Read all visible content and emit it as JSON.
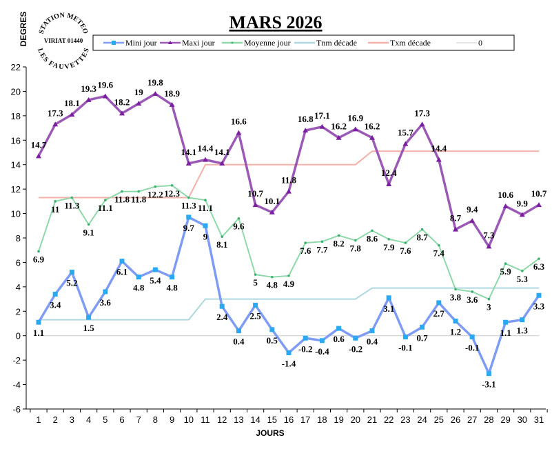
{
  "chart_data": {
    "type": "line",
    "title": "MARS 2026",
    "xlabel": "JOURS",
    "ylabel": "DEGRES",
    "logo_text": [
      "STATION METEO",
      "VIRIAT 01440",
      "LES FAUVETTES"
    ],
    "ylim": [
      -6,
      22
    ],
    "yticks": [
      -6,
      -4,
      -2,
      0,
      2,
      4,
      6,
      8,
      10,
      12,
      14,
      16,
      18,
      20,
      22
    ],
    "x": [
      1,
      2,
      3,
      4,
      5,
      6,
      7,
      8,
      9,
      10,
      11,
      12,
      13,
      14,
      15,
      16,
      17,
      18,
      19,
      20,
      21,
      22,
      23,
      24,
      25,
      26,
      27,
      28,
      29,
      30,
      31
    ],
    "grid": false,
    "legend_placement": "top",
    "series": [
      {
        "name": "Mini jour",
        "color": "#7f9cf5",
        "marker": "star",
        "labels": true,
        "values": [
          1.1,
          3.4,
          5.2,
          1.5,
          3.6,
          6.1,
          4.8,
          5.4,
          4.8,
          9.7,
          9,
          2.4,
          0.4,
          2.5,
          0.5,
          -1.4,
          -0.2,
          -0.4,
          0.6,
          -0.2,
          0.4,
          3.1,
          -0.1,
          0.7,
          2.7,
          1.2,
          -0.1,
          -3.1,
          1.1,
          1.3,
          3.3
        ]
      },
      {
        "name": "Maxi jour",
        "color": "#9b59b6",
        "marker": "triangle",
        "labels": true,
        "values": [
          14.7,
          17.3,
          18.1,
          19.3,
          19.6,
          18.2,
          19,
          19.8,
          18.9,
          14.1,
          14.4,
          14.1,
          16.6,
          10.7,
          10.1,
          11.8,
          16.8,
          17.1,
          16.2,
          16.9,
          16.2,
          12.4,
          15.7,
          17.3,
          14.4,
          8.7,
          9.4,
          7.3,
          10.6,
          9.9,
          10.7
        ]
      },
      {
        "name": "Moyenne jour",
        "color": "#8fd8aa",
        "marker": "dot",
        "labels": true,
        "values": [
          6.9,
          11,
          11.3,
          9.1,
          11.1,
          11.8,
          11.8,
          12.2,
          12.3,
          11.3,
          11.1,
          8.1,
          9.6,
          5,
          4.8,
          4.9,
          7.6,
          7.7,
          8.2,
          7.8,
          8.6,
          7.9,
          7.6,
          8.7,
          7.4,
          3.8,
          3.6,
          3,
          5.9,
          5.3,
          6.3
        ]
      },
      {
        "name": "Tnm décade",
        "color": "#aed8e0",
        "marker": "none",
        "labels": false,
        "values": [
          1.3,
          1.3,
          1.3,
          1.3,
          1.3,
          1.3,
          1.3,
          1.3,
          1.3,
          1.3,
          3,
          3,
          3,
          3,
          3,
          3,
          3,
          3,
          3,
          3,
          3.9,
          3.9,
          3.9,
          3.9,
          3.9,
          3.9,
          3.9,
          3.9,
          3.9,
          3.9,
          3.9
        ]
      },
      {
        "name": "Txm décade",
        "color": "#f4b0a8",
        "marker": "none",
        "labels": false,
        "values": [
          11.3,
          11.3,
          11.3,
          11.3,
          11.3,
          11.3,
          11.3,
          11.3,
          11.3,
          11.3,
          14,
          14,
          14,
          14,
          14,
          14,
          14,
          14,
          14,
          14,
          15.1,
          15.1,
          15.1,
          15.1,
          15.1,
          15.1,
          15.1,
          15.1,
          15.1,
          15.1,
          15.1
        ]
      },
      {
        "name": "0",
        "color": "#c8c8c8",
        "marker": "none",
        "labels": false,
        "values": [
          0,
          0,
          0,
          0,
          0,
          0,
          0,
          0,
          0,
          0,
          0,
          0,
          0,
          0,
          0,
          0,
          0,
          0,
          0,
          0,
          0,
          0,
          0,
          0,
          0,
          0,
          0,
          0,
          0,
          0,
          0
        ]
      }
    ]
  }
}
